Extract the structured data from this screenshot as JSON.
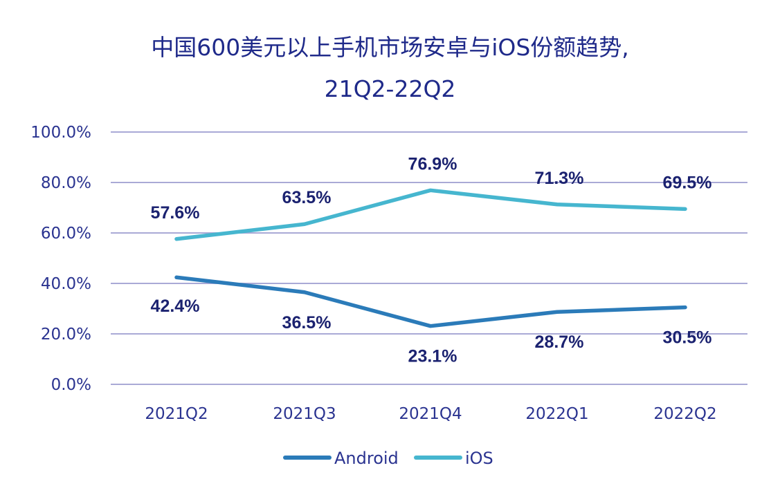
{
  "chart_data": {
    "type": "line",
    "title": "中国600美元以上手机市场安卓与iOS份额趋势,",
    "subtitle": "21Q2-22Q2",
    "categories": [
      "2021Q2",
      "2021Q3",
      "2021Q4",
      "2022Q1",
      "2022Q2"
    ],
    "series": [
      {
        "name": "Android",
        "values": [
          42.4,
          36.5,
          23.1,
          28.7,
          30.5
        ],
        "labels": [
          "42.4%",
          "36.5%",
          "23.1%",
          "28.7%",
          "30.5%"
        ],
        "color": "#2b7bb9"
      },
      {
        "name": "iOS",
        "values": [
          57.6,
          63.5,
          76.9,
          71.3,
          69.5
        ],
        "labels": [
          "57.6%",
          "63.5%",
          "76.9%",
          "71.3%",
          "69.5%"
        ],
        "color": "#46b6cf"
      }
    ],
    "ylim": [
      0,
      100
    ],
    "yticks": [
      0,
      20,
      40,
      60,
      80,
      100
    ],
    "ytick_labels": [
      "0.0%",
      "20.0%",
      "40.0%",
      "60.0%",
      "80.0%",
      "100.0%"
    ],
    "grid": true,
    "gridline_color": "#a9a9d6",
    "legend_position": "bottom-center",
    "xlabel": "",
    "ylabel": ""
  }
}
